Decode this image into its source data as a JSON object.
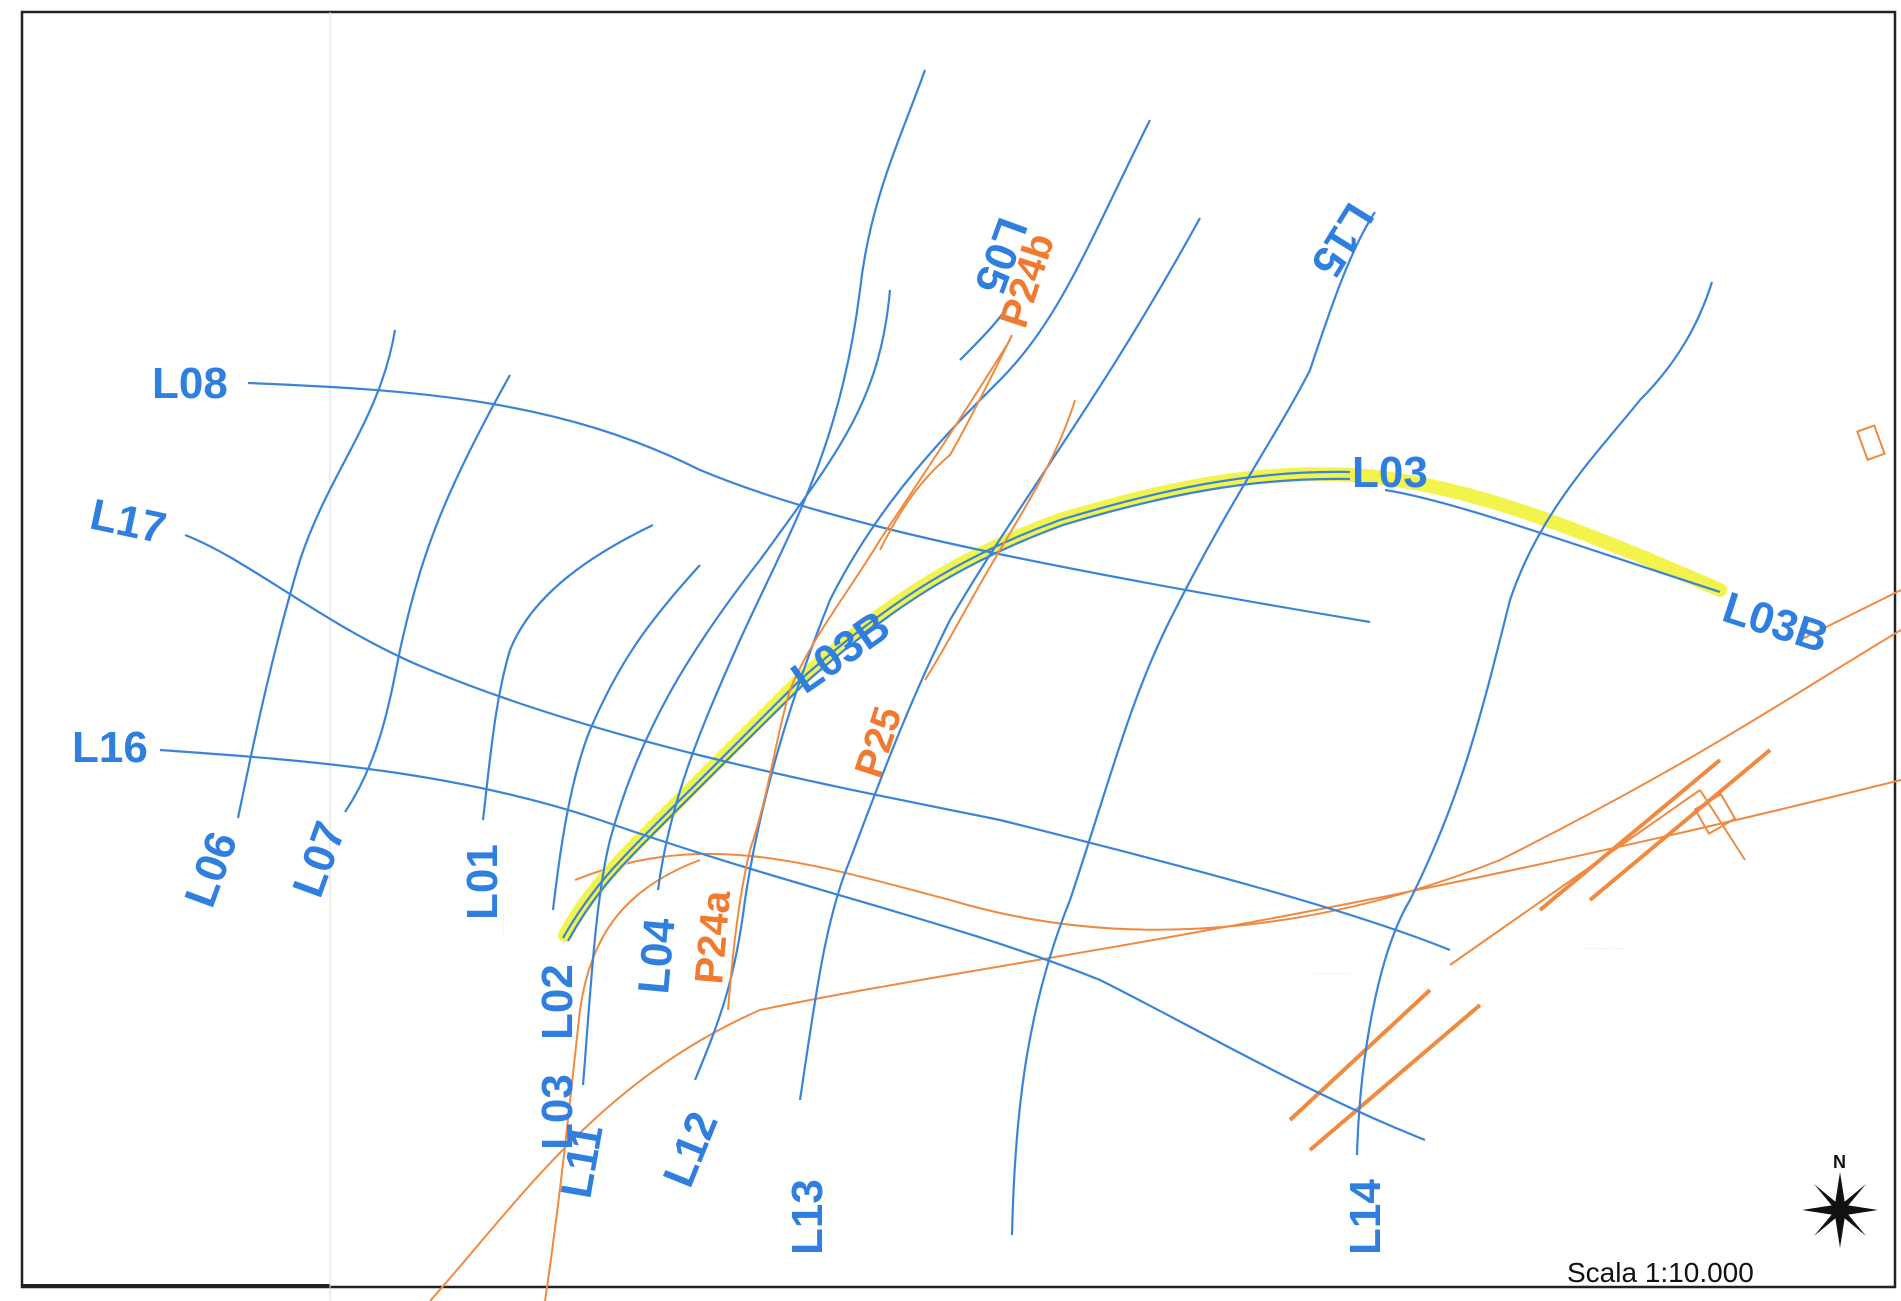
{
  "map": {
    "scale_label": "Scala 1:10.000",
    "north_label": "N",
    "colors": {
      "survey_line": "#3a84d8",
      "survey_label": "#2f7fe0",
      "profile_line": "#f08a40",
      "highlight": "#f2f23a",
      "frame": "#222222"
    },
    "survey_lines": [
      {
        "id": "L01",
        "label": "L01"
      },
      {
        "id": "L02",
        "label": "L02"
      },
      {
        "id": "L03",
        "label": "L03"
      },
      {
        "id": "L03B",
        "label": "L03B"
      },
      {
        "id": "L03B-east",
        "label": "L03B"
      },
      {
        "id": "L03-south",
        "label": "L03"
      },
      {
        "id": "L04",
        "label": "L04"
      },
      {
        "id": "L05",
        "label": "L05"
      },
      {
        "id": "L06",
        "label": "L06"
      },
      {
        "id": "L07",
        "label": "L07"
      },
      {
        "id": "L08",
        "label": "L08"
      },
      {
        "id": "L11",
        "label": "L11"
      },
      {
        "id": "L12",
        "label": "L12"
      },
      {
        "id": "L13",
        "label": "L13"
      },
      {
        "id": "L14",
        "label": "L14"
      },
      {
        "id": "L15",
        "label": "L15"
      },
      {
        "id": "L16",
        "label": "L16"
      },
      {
        "id": "L17",
        "label": "L17"
      }
    ],
    "profiles": [
      {
        "id": "P24a",
        "label": "P24a"
      },
      {
        "id": "P24b",
        "label": "P24b"
      },
      {
        "id": "P25",
        "label": "P25"
      }
    ]
  }
}
